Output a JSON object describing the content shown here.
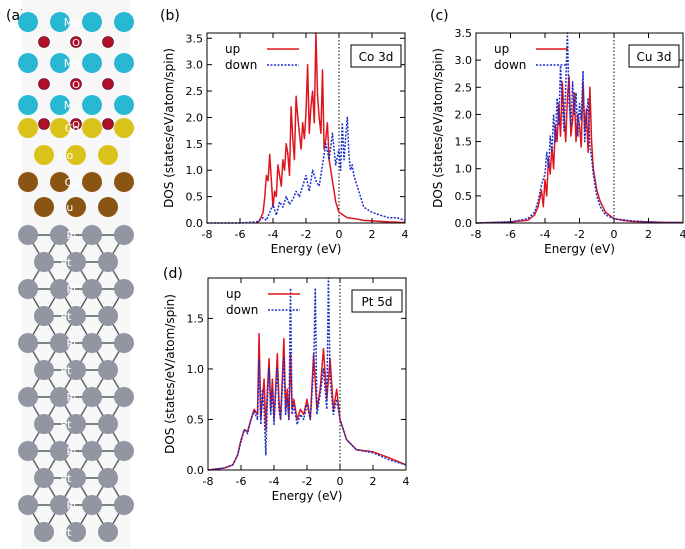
{
  "structure": {
    "label": "(a)",
    "layers": [
      "Mg",
      "O",
      "Mg",
      "O",
      "Mg",
      "O",
      "Co",
      "Co",
      "Cu",
      "Cu",
      "Pt",
      "Pt",
      "Pt",
      "Pt",
      "Pt",
      "Pt",
      "Pt",
      "Pt",
      "Pt",
      "Pt",
      "Pt",
      "Pt"
    ],
    "colors": {
      "Mg": "#29b8d4",
      "O": "#b0102a",
      "Co": "#d9c31a",
      "Cu": "#8a5512",
      "Pt": "#9296a3"
    }
  },
  "chart_data": [
    {
      "panel_label": "(b)",
      "type": "line",
      "title_box": "Co 3d",
      "xlabel": "Energy (eV)",
      "ylabel": "DOS (states/eV/atom/spin)",
      "xlim": [
        -8,
        4
      ],
      "ylim": [
        0,
        3.6
      ],
      "xticks": [
        "-8",
        "-6",
        "-4",
        "-2",
        "0",
        "2",
        "4"
      ],
      "yticks": [
        "0.0",
        "0.5",
        "1.0",
        "1.5",
        "2.0",
        "2.5",
        "3.0",
        "3.5"
      ],
      "series": [
        {
          "name": "up",
          "color": "#e0141c",
          "dash": "solid",
          "x": [
            -5.0,
            -4.8,
            -4.6,
            -4.5,
            -4.4,
            -4.3,
            -4.2,
            -4.1,
            -4.0,
            -3.9,
            -3.8,
            -3.7,
            -3.6,
            -3.5,
            -3.4,
            -3.3,
            -3.2,
            -3.1,
            -3.0,
            -2.9,
            -2.8,
            -2.7,
            -2.6,
            -2.5,
            -2.4,
            -2.3,
            -2.2,
            -2.1,
            -2.0,
            -1.9,
            -1.8,
            -1.7,
            -1.6,
            -1.5,
            -1.4,
            -1.3,
            -1.2,
            -1.1,
            -1.0,
            -0.9,
            -0.8,
            -0.7,
            -0.6,
            -0.5,
            -0.4,
            -0.3,
            -0.2,
            -0.1,
            0.0,
            0.5,
            1.0,
            1.5,
            2.0,
            3.0,
            4.0
          ],
          "y": [
            0.0,
            0.05,
            0.2,
            0.5,
            0.9,
            0.8,
            1.3,
            0.8,
            0.3,
            0.6,
            0.5,
            1.1,
            0.9,
            0.7,
            1.2,
            1.0,
            1.5,
            1.3,
            0.9,
            2.2,
            1.6,
            1.2,
            2.4,
            2.0,
            1.7,
            1.4,
            1.9,
            1.6,
            2.1,
            3.0,
            1.7,
            2.2,
            2.5,
            1.9,
            3.6,
            2.4,
            2.0,
            1.7,
            2.9,
            1.4,
            1.6,
            1.9,
            1.2,
            1.0,
            0.8,
            0.6,
            0.4,
            0.3,
            0.2,
            0.1,
            0.08,
            0.05,
            0.04,
            0.02,
            0.01
          ]
        },
        {
          "name": "down",
          "color": "#1a2ec8",
          "dash": "dotted",
          "x": [
            -8.0,
            -6.0,
            -5.0,
            -4.6,
            -4.4,
            -4.2,
            -4.0,
            -3.8,
            -3.6,
            -3.4,
            -3.2,
            -3.0,
            -2.8,
            -2.6,
            -2.4,
            -2.2,
            -2.0,
            -1.8,
            -1.6,
            -1.4,
            -1.2,
            -1.0,
            -0.8,
            -0.6,
            -0.4,
            -0.2,
            0.0,
            0.1,
            0.2,
            0.3,
            0.4,
            0.5,
            0.6,
            0.7,
            0.8,
            0.9,
            1.0,
            1.2,
            1.5,
            2.0,
            2.5,
            3.0,
            3.5,
            4.0
          ],
          "y": [
            0.0,
            0.0,
            0.02,
            0.1,
            0.05,
            0.2,
            0.35,
            0.15,
            0.4,
            0.3,
            0.5,
            0.35,
            0.45,
            0.6,
            0.5,
            0.7,
            0.9,
            0.6,
            1.0,
            0.8,
            0.7,
            1.1,
            1.5,
            1.2,
            1.7,
            1.1,
            1.4,
            1.0,
            1.9,
            1.2,
            1.6,
            2.0,
            1.3,
            1.0,
            1.1,
            0.9,
            0.8,
            0.6,
            0.3,
            0.2,
            0.15,
            0.1,
            0.1,
            0.05
          ]
        }
      ]
    },
    {
      "panel_label": "(c)",
      "type": "line",
      "title_box": "Cu 3d",
      "xlabel": "Energy (eV)",
      "ylabel": "DOS (states/eV/atom/spin)",
      "xlim": [
        -8,
        4
      ],
      "ylim": [
        0,
        3.5
      ],
      "xticks": [
        "-8",
        "-6",
        "-4",
        "-2",
        "0",
        "2",
        "4"
      ],
      "yticks": [
        "0.0",
        "0.5",
        "1.0",
        "1.5",
        "2.0",
        "2.5",
        "3.0",
        "3.5"
      ],
      "series": [
        {
          "name": "up",
          "color": "#e0141c",
          "dash": "solid",
          "x": [
            -8.0,
            -6.0,
            -5.0,
            -4.6,
            -4.4,
            -4.2,
            -4.1,
            -4.0,
            -3.9,
            -3.8,
            -3.7,
            -3.6,
            -3.5,
            -3.4,
            -3.3,
            -3.2,
            -3.1,
            -3.0,
            -2.9,
            -2.8,
            -2.7,
            -2.6,
            -2.5,
            -2.4,
            -2.3,
            -2.2,
            -2.1,
            -2.0,
            -1.9,
            -1.8,
            -1.7,
            -1.6,
            -1.5,
            -1.4,
            -1.3,
            -1.2,
            -1.0,
            -0.8,
            -0.5,
            0.0,
            0.5,
            1.0,
            2.0,
            3.0,
            4.0
          ],
          "y": [
            0.0,
            0.02,
            0.05,
            0.15,
            0.3,
            0.6,
            0.3,
            0.8,
            0.5,
            1.2,
            0.9,
            1.4,
            1.0,
            1.8,
            1.5,
            2.2,
            1.6,
            2.6,
            2.0,
            1.5,
            2.3,
            2.7,
            1.6,
            1.9,
            2.4,
            1.5,
            2.0,
            1.8,
            1.4,
            2.6,
            1.7,
            2.1,
            1.3,
            2.5,
            1.5,
            1.0,
            0.6,
            0.4,
            0.2,
            0.08,
            0.05,
            0.03,
            0.02,
            0.01,
            0.01
          ]
        },
        {
          "name": "down",
          "color": "#1a2ec8",
          "dash": "dotted",
          "x": [
            -8.0,
            -6.0,
            -5.0,
            -4.6,
            -4.4,
            -4.2,
            -4.0,
            -3.9,
            -3.8,
            -3.7,
            -3.6,
            -3.5,
            -3.4,
            -3.3,
            -3.2,
            -3.1,
            -3.0,
            -2.9,
            -2.8,
            -2.7,
            -2.6,
            -2.5,
            -2.4,
            -2.3,
            -2.2,
            -2.1,
            -2.0,
            -1.9,
            -1.8,
            -1.7,
            -1.6,
            -1.5,
            -1.4,
            -1.3,
            -1.2,
            -1.0,
            -0.8,
            -0.5,
            0.0,
            0.5,
            1.0,
            2.0,
            3.0,
            4.0
          ],
          "y": [
            0.0,
            0.02,
            0.08,
            0.2,
            0.4,
            0.7,
            0.9,
            1.3,
            1.0,
            1.6,
            1.3,
            2.0,
            1.5,
            2.3,
            1.8,
            2.9,
            2.2,
            1.7,
            2.5,
            3.5,
            2.2,
            1.8,
            2.6,
            2.0,
            2.4,
            1.6,
            2.2,
            1.9,
            2.8,
            1.5,
            1.9,
            2.3,
            1.4,
            1.2,
            0.9,
            0.5,
            0.3,
            0.15,
            0.08,
            0.06,
            0.04,
            0.02,
            0.01,
            0.01
          ]
        }
      ]
    },
    {
      "panel_label": "(d)",
      "type": "line",
      "title_box": "Pt 5d",
      "xlabel": "Energy (eV)",
      "ylabel": "DOS (states/eV/atom/spin)",
      "xlim": [
        -8,
        4
      ],
      "ylim": [
        0,
        1.9
      ],
      "xticks": [
        "-8",
        "-6",
        "-4",
        "-2",
        "0",
        "2",
        "4"
      ],
      "yticks": [
        "0.0",
        "0.5",
        "1.0",
        "1.5"
      ],
      "series": [
        {
          "name": "up",
          "color": "#e0141c",
          "dash": "solid",
          "x": [
            -8.0,
            -7.0,
            -6.5,
            -6.2,
            -6.0,
            -5.8,
            -5.6,
            -5.4,
            -5.2,
            -5.0,
            -4.9,
            -4.8,
            -4.7,
            -4.6,
            -4.5,
            -4.4,
            -4.3,
            -4.2,
            -4.1,
            -4.0,
            -3.9,
            -3.8,
            -3.7,
            -3.6,
            -3.5,
            -3.4,
            -3.3,
            -3.2,
            -3.1,
            -3.0,
            -2.9,
            -2.8,
            -2.6,
            -2.4,
            -2.2,
            -2.0,
            -1.8,
            -1.6,
            -1.4,
            -1.2,
            -1.0,
            -0.8,
            -0.6,
            -0.4,
            -0.2,
            0.0,
            0.1,
            0.2,
            0.4,
            1.0,
            2.0,
            3.0,
            4.0
          ],
          "y": [
            0.0,
            0.02,
            0.05,
            0.15,
            0.3,
            0.4,
            0.38,
            0.5,
            0.6,
            0.55,
            1.35,
            0.5,
            0.7,
            0.9,
            0.4,
            0.8,
            1.1,
            0.6,
            0.9,
            0.5,
            0.8,
            1.15,
            0.7,
            0.5,
            0.9,
            1.3,
            0.6,
            0.8,
            0.5,
            1.15,
            0.6,
            0.7,
            0.5,
            0.6,
            0.55,
            0.7,
            0.5,
            1.15,
            0.6,
            0.8,
            1.2,
            0.7,
            1.1,
            0.6,
            0.8,
            0.5,
            0.45,
            0.4,
            0.3,
            0.2,
            0.18,
            0.12,
            0.05
          ]
        },
        {
          "name": "down",
          "color": "#1a2ec8",
          "dash": "dotted",
          "x": [
            -8.0,
            -7.0,
            -6.5,
            -6.2,
            -6.0,
            -5.8,
            -5.6,
            -5.4,
            -5.2,
            -5.0,
            -4.9,
            -4.8,
            -4.7,
            -4.6,
            -4.5,
            -4.4,
            -4.3,
            -4.2,
            -4.1,
            -4.0,
            -3.9,
            -3.8,
            -3.7,
            -3.6,
            -3.5,
            -3.4,
            -3.3,
            -3.2,
            -3.1,
            -3.0,
            -2.9,
            -2.8,
            -2.6,
            -2.4,
            -2.2,
            -2.0,
            -1.8,
            -1.6,
            -1.5,
            -1.4,
            -1.2,
            -1.0,
            -0.8,
            -0.7,
            -0.6,
            -0.4,
            -0.2,
            0.0,
            0.2,
            0.4,
            1.0,
            2.0,
            3.0,
            4.0
          ],
          "y": [
            0.0,
            0.02,
            0.05,
            0.15,
            0.28,
            0.4,
            0.36,
            0.5,
            0.58,
            0.5,
            1.1,
            0.45,
            0.8,
            0.6,
            0.15,
            0.7,
            1.0,
            0.55,
            0.8,
            0.45,
            0.75,
            1.0,
            0.6,
            0.5,
            0.8,
            1.1,
            0.55,
            0.7,
            0.5,
            1.8,
            0.55,
            0.65,
            0.45,
            0.55,
            0.5,
            0.65,
            0.5,
            1.0,
            1.8,
            0.55,
            0.75,
            1.0,
            0.6,
            1.9,
            0.9,
            0.55,
            0.7,
            0.5,
            0.4,
            0.3,
            0.2,
            0.17,
            0.1,
            0.05
          ]
        }
      ]
    }
  ]
}
